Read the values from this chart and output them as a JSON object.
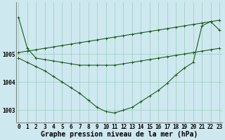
{
  "title": "Graphe pression niveau de la mer (hPa)",
  "background_color": "#cee8f0",
  "grid_color": "#99ccbb",
  "line_color": "#1a5c1a",
  "x_labels": [
    "0",
    "1",
    "2",
    "3",
    "4",
    "5",
    "6",
    "7",
    "8",
    "9",
    "10",
    "11",
    "12",
    "13",
    "14",
    "15",
    "16",
    "17",
    "18",
    "19",
    "20",
    "21",
    "22",
    "23"
  ],
  "hours": [
    0,
    1,
    2,
    3,
    4,
    5,
    6,
    7,
    8,
    9,
    10,
    11,
    12,
    13,
    14,
    15,
    16,
    17,
    18,
    19,
    20,
    21,
    22,
    23
  ],
  "line_top": [
    1005.05,
    1005.1,
    1005.15,
    1005.2,
    1005.25,
    1005.3,
    1005.35,
    1005.4,
    1005.45,
    1005.5,
    1005.55,
    1005.6,
    1005.65,
    1005.7,
    1005.75,
    1005.8,
    1005.85,
    1005.9,
    1005.95,
    1006.0,
    1006.05,
    1006.1,
    1006.15,
    1006.2
  ],
  "line_high": [
    1006.3,
    1005.2,
    1004.85,
    1004.8,
    1004.75,
    1004.7,
    1004.65,
    1004.6,
    1004.6,
    1004.6,
    1004.6,
    1004.6,
    1004.65,
    1004.7,
    1004.75,
    1004.8,
    1004.85,
    1004.9,
    1004.95,
    1005.0,
    1005.05,
    1005.1,
    1005.15,
    1005.2
  ],
  "line_low": [
    1004.85,
    1004.7,
    1004.55,
    1004.4,
    1004.2,
    1004.0,
    1003.8,
    1003.6,
    1003.35,
    1003.1,
    1002.95,
    1002.9,
    1003.0,
    1003.1,
    1003.3,
    1003.5,
    1003.7,
    1003.95,
    1004.25,
    1004.5,
    1004.7,
    1006.0,
    1006.15,
    1005.85
  ],
  "ylim_min": 1002.55,
  "ylim_max": 1006.85,
  "yticks": [
    1003,
    1004,
    1005
  ],
  "title_fontsize": 7,
  "label_fontsize": 5.5
}
